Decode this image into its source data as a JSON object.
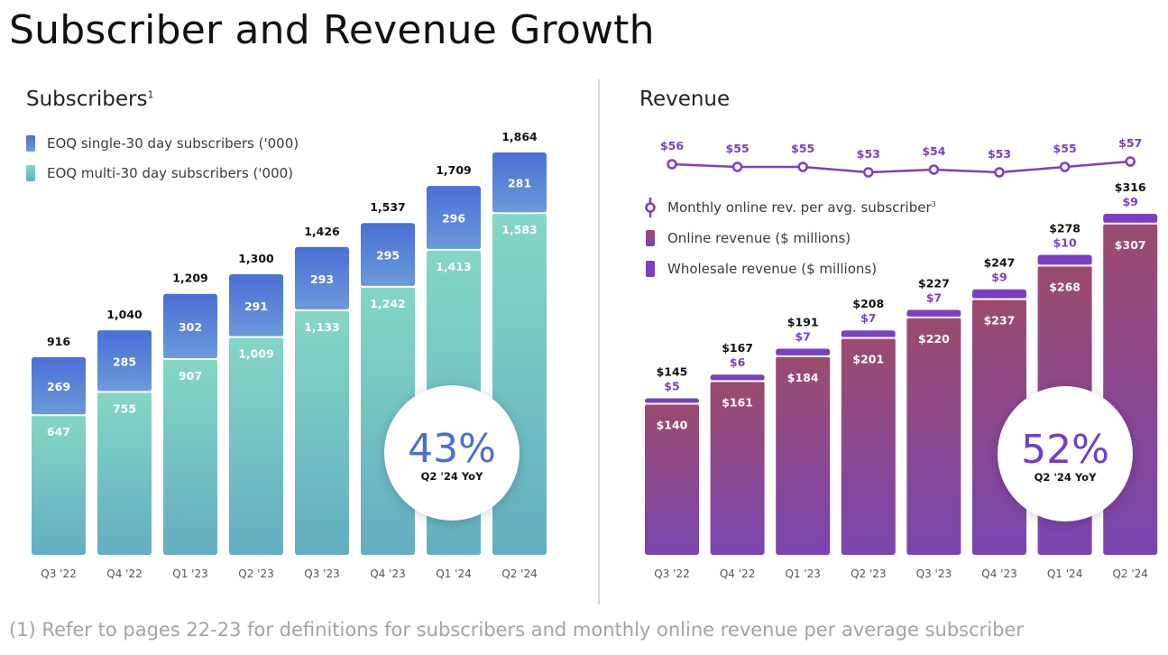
{
  "page_title": "Subscriber and Revenue Growth",
  "footnote": "(1) Refer to pages 22-23 for definitions for subscribers and monthly online revenue per average subscriber",
  "colors": {
    "single_top": "#4a6fd6",
    "single_bottom": "#6b9ad8",
    "multi_top": "#84d6c4",
    "multi_bottom": "#63aec2",
    "online_top": "#9b4b6e",
    "online_bottom": "#7a45b0",
    "wholesale": "#7b3fc4",
    "arpu_line": "#7b3fc4"
  },
  "subscribers": {
    "title": "Subscribers",
    "title_sup": "1",
    "badge_value": "43%",
    "badge_label": "Q2 '24 YoY"
  },
  "revenue": {
    "title": "Revenue",
    "badge_value": "52%",
    "badge_label": "Q2 '24 YoY"
  },
  "chart_data": [
    {
      "type": "bar",
      "stacked": true,
      "title": "Subscribers",
      "categories": [
        "Q3 '22",
        "Q4 '22",
        "Q1 '23",
        "Q2 '23",
        "Q3 '23",
        "Q4 '23",
        "Q1 '24",
        "Q2 '24"
      ],
      "series": [
        {
          "name": "EOQ multi-30 day subscribers  ('000)",
          "values": [
            647,
            755,
            907,
            1009,
            1133,
            1242,
            1413,
            1583
          ],
          "labels": [
            "647",
            "755",
            "907",
            "1,009",
            "1,133",
            "1,242",
            "1,413",
            "1,583"
          ]
        },
        {
          "name": "EOQ single-30 day subscribers ('000)",
          "values": [
            269,
            285,
            302,
            291,
            293,
            295,
            296,
            281
          ],
          "labels": [
            "269",
            "285",
            "302",
            "291",
            "293",
            "295",
            "296",
            "281"
          ]
        }
      ],
      "totals": [
        "916",
        "1,040",
        "1,209",
        "1,300",
        "1,426",
        "1,537",
        "1,709",
        "1,864"
      ],
      "total_values": [
        916,
        1040,
        1209,
        1300,
        1426,
        1537,
        1709,
        1864
      ],
      "ylim": [
        0,
        1864
      ],
      "legend": "top-left",
      "grid": false
    },
    {
      "type": "bar",
      "stacked": true,
      "title": "Revenue",
      "categories": [
        "Q3 '22",
        "Q4 '22",
        "Q1 '23",
        "Q2 '23",
        "Q3 '23",
        "Q4 '23",
        "Q1 '24",
        "Q2 '24"
      ],
      "series": [
        {
          "name": "Online revenue ($ millions)",
          "values": [
            140,
            161,
            184,
            201,
            220,
            237,
            268,
            307
          ],
          "labels": [
            "$140",
            "$161",
            "$184",
            "$201",
            "$220",
            "$237",
            "$268",
            "$307"
          ]
        },
        {
          "name": "Wholesale revenue ($ millions)",
          "values": [
            5,
            6,
            7,
            7,
            7,
            9,
            10,
            9
          ],
          "labels": [
            "$5",
            "$6",
            "$7",
            "$7",
            "$7",
            "$9",
            "$10",
            "$9"
          ]
        }
      ],
      "totals": [
        "$145",
        "$167",
        "$191",
        "$208",
        "$227",
        "$247",
        "$278",
        "$316"
      ],
      "total_values": [
        145,
        167,
        191,
        208,
        227,
        247,
        278,
        316
      ],
      "line": {
        "name": "Monthly online rev. per avg. subscriber",
        "name_sup": "3",
        "type": "line",
        "values": [
          56,
          55,
          55,
          53,
          54,
          53,
          55,
          57
        ],
        "labels": [
          "$56",
          "$55",
          "$55",
          "$53",
          "$54",
          "$53",
          "$55",
          "$57"
        ]
      },
      "ylim": [
        0,
        316
      ],
      "legend": "top-left",
      "grid": false
    }
  ]
}
